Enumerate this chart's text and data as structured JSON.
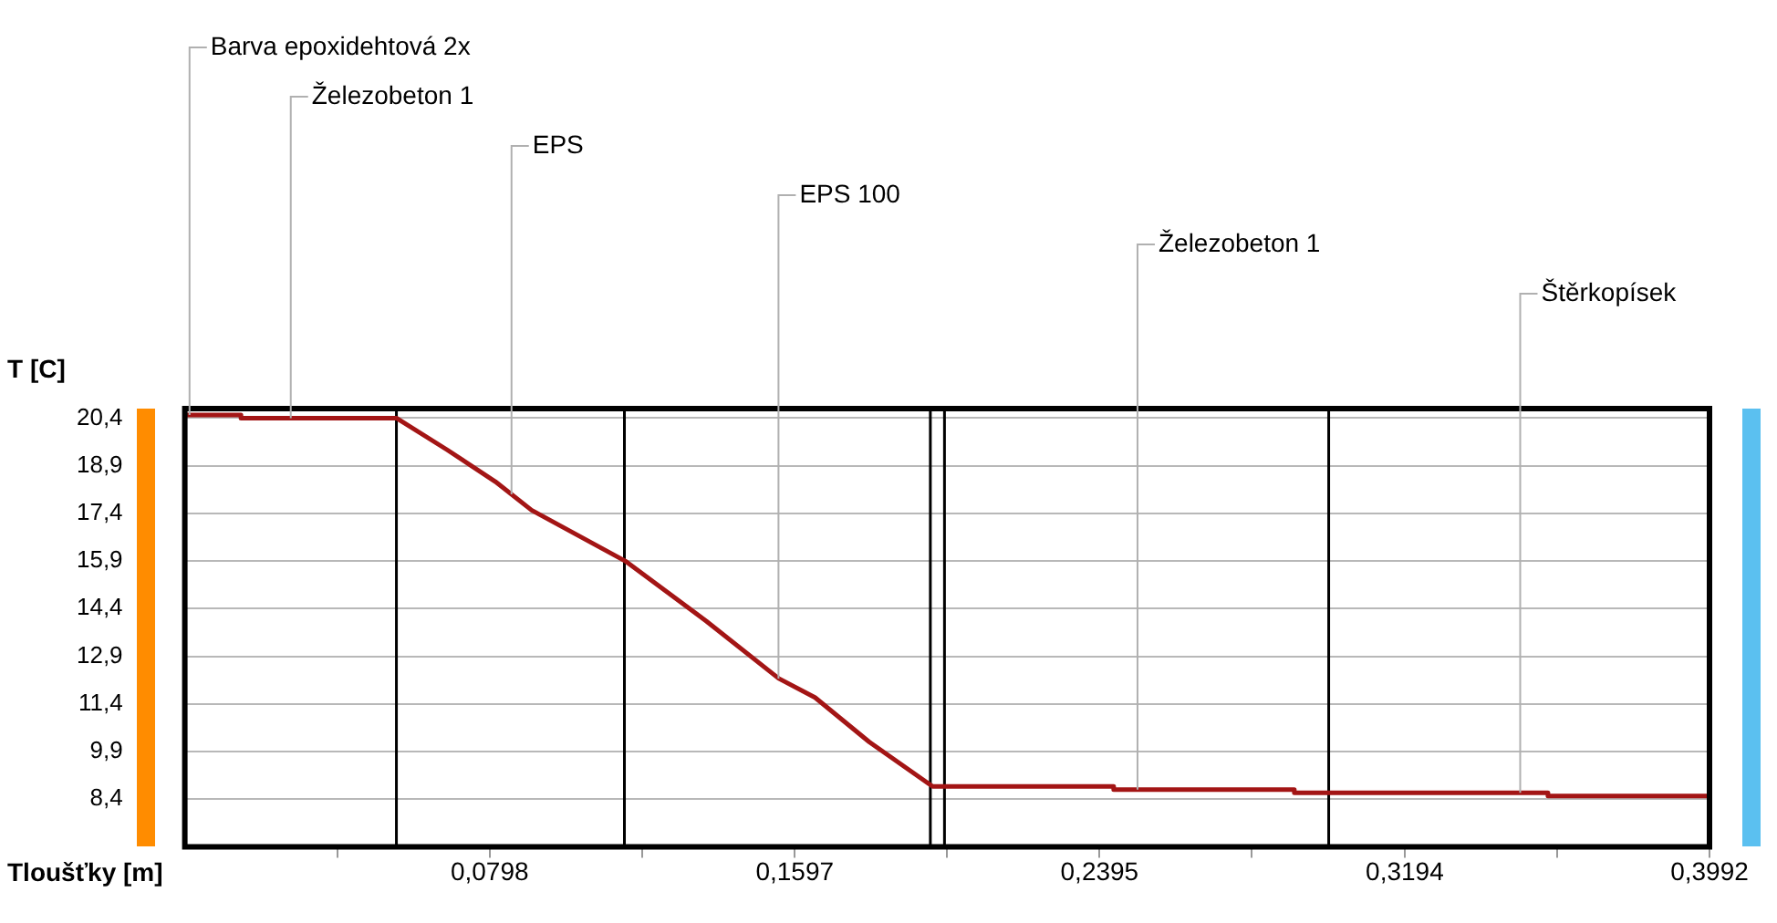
{
  "chart_data": {
    "type": "line",
    "xlabel": "Tloušťky [m]",
    "ylabel": "T [C]",
    "x": [
      0,
      0.0147,
      0.0147,
      0.0554,
      0.0687,
      0.0813,
      0.0908,
      0.1153,
      0.1366,
      0.1555,
      0.165,
      0.1792,
      0.1934,
      0.1958,
      0.2432,
      0.2432,
      0.2905,
      0.2905,
      0.3569,
      0.3569,
      0.3992
    ],
    "series": [
      {
        "color": "#a31515",
        "values": [
          20.5,
          20.5,
          20.4,
          20.4,
          19.4,
          18.4,
          17.5,
          15.9,
          14.0,
          12.2,
          11.6,
          10.2,
          9.0,
          8.8,
          8.8,
          8.7,
          8.7,
          8.6,
          8.6,
          8.5,
          8.5
        ]
      }
    ],
    "xlim": [
      0,
      0.3992
    ],
    "ylim": [
      6.9,
      20.7
    ],
    "xticks": [
      {
        "value": 0.0399,
        "label": null
      },
      {
        "value": 0.0798,
        "label": "0,0798"
      },
      {
        "value": 0.1197,
        "label": null
      },
      {
        "value": 0.1597,
        "label": "0,1597"
      },
      {
        "value": 0.1996,
        "label": null
      },
      {
        "value": 0.2395,
        "label": "0,2395"
      },
      {
        "value": 0.2794,
        "label": null
      },
      {
        "value": 0.3194,
        "label": "0,3194"
      },
      {
        "value": 0.3593,
        "label": null
      },
      {
        "value": 0.3992,
        "label": "0,3992"
      }
    ],
    "yticks": [
      {
        "value": 8.4,
        "label": "8,4"
      },
      {
        "value": 9.9,
        "label": "9,9"
      },
      {
        "value": 11.4,
        "label": "11,4"
      },
      {
        "value": 12.9,
        "label": "12,9"
      },
      {
        "value": 14.4,
        "label": "14,4"
      },
      {
        "value": 15.9,
        "label": "15,9"
      },
      {
        "value": 17.4,
        "label": "17,4"
      },
      {
        "value": 18.9,
        "label": "18,9"
      },
      {
        "value": 20.4,
        "label": "20,4"
      }
    ],
    "ref_lines": [
      {
        "axis": "x",
        "value": 0.0554,
        "color": "#000000"
      },
      {
        "axis": "x",
        "value": 0.1151,
        "color": "#000000"
      },
      {
        "axis": "x",
        "value": 0.1952,
        "color": "#000000"
      },
      {
        "axis": "x",
        "value": 0.1989,
        "color": "#000000"
      },
      {
        "axis": "x",
        "value": 0.2995,
        "color": "#000000"
      }
    ],
    "annotations": [
      {
        "text": "Barva epoxidehtová 2x",
        "x": 0.001,
        "y": 20.5
      },
      {
        "text": "Železobeton 1",
        "x": 0.0275,
        "y": 20.4
      },
      {
        "text": "EPS",
        "x": 0.0853,
        "y": 18.0
      },
      {
        "text": "EPS 100",
        "x": 0.1552,
        "y": 12.2
      },
      {
        "text": "Železobeton 1",
        "x": 0.2492,
        "y": 8.7
      },
      {
        "text": "Štěrkopísek",
        "x": 0.3494,
        "y": 8.6
      }
    ],
    "grid": "y",
    "marker": "none",
    "line_style": "solid",
    "legend": false
  }
}
